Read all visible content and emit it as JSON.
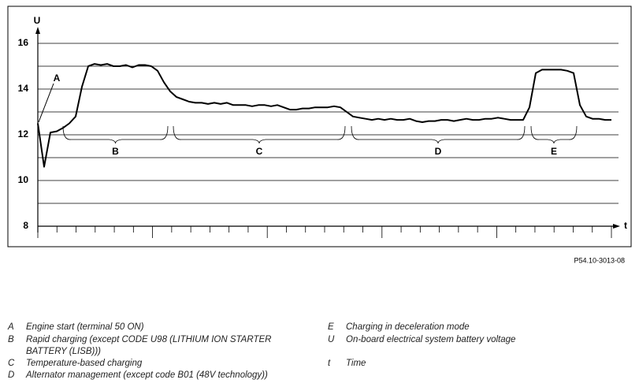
{
  "chart_data": {
    "type": "line",
    "y_label": "U",
    "x_label": "t",
    "ylim": [
      8,
      16
    ],
    "yticks": [
      8,
      10,
      12,
      14,
      16
    ],
    "grid_values": [
      9,
      10,
      11,
      12,
      13,
      14,
      15,
      16
    ],
    "series": [
      {
        "color": "#000000",
        "values": [
          12.5,
          10.6,
          12.1,
          12.15,
          12.3,
          12.5,
          12.8,
          14.1,
          15.0,
          15.1,
          15.05,
          15.1,
          15.0,
          15.0,
          15.05,
          14.95,
          15.05,
          15.05,
          15.0,
          14.8,
          14.3,
          13.9,
          13.65,
          13.55,
          13.45,
          13.4,
          13.4,
          13.35,
          13.4,
          13.35,
          13.4,
          13.3,
          13.3,
          13.3,
          13.25,
          13.3,
          13.3,
          13.25,
          13.3,
          13.2,
          13.1,
          13.1,
          13.15,
          13.15,
          13.2,
          13.2,
          13.2,
          13.25,
          13.2,
          13.0,
          12.8,
          12.75,
          12.7,
          12.65,
          12.7,
          12.65,
          12.7,
          12.65,
          12.65,
          12.7,
          12.6,
          12.55,
          12.6,
          12.6,
          12.65,
          12.65,
          12.6,
          12.65,
          12.7,
          12.65,
          12.65,
          12.7,
          12.7,
          12.75,
          12.7,
          12.65,
          12.65,
          12.65,
          13.2,
          14.7,
          14.85,
          14.85,
          14.85,
          14.85,
          14.8,
          14.7,
          13.3,
          12.8,
          12.7,
          12.7,
          12.65,
          12.65
        ]
      }
    ],
    "annotations": [
      "A",
      "B",
      "C",
      "D",
      "E"
    ],
    "reference": "P54.10-3013-08",
    "legend_items": [
      {
        "key": "A",
        "text": "Engine start (terminal 50 ON)"
      },
      {
        "key": "B",
        "text": "Rapid charging (except CODE U98 (LITHIUM ION STARTER BATTERY (LISB)))"
      },
      {
        "key": "C",
        "text": "Temperature-based charging"
      },
      {
        "key": "D",
        "text": "Alternator management (except code B01 (48V technology))"
      },
      {
        "key": "E",
        "text": "Charging in deceleration mode"
      },
      {
        "key": "U",
        "text": "On-board electrical system battery voltage"
      },
      {
        "key": "t",
        "text": "Time"
      }
    ]
  }
}
